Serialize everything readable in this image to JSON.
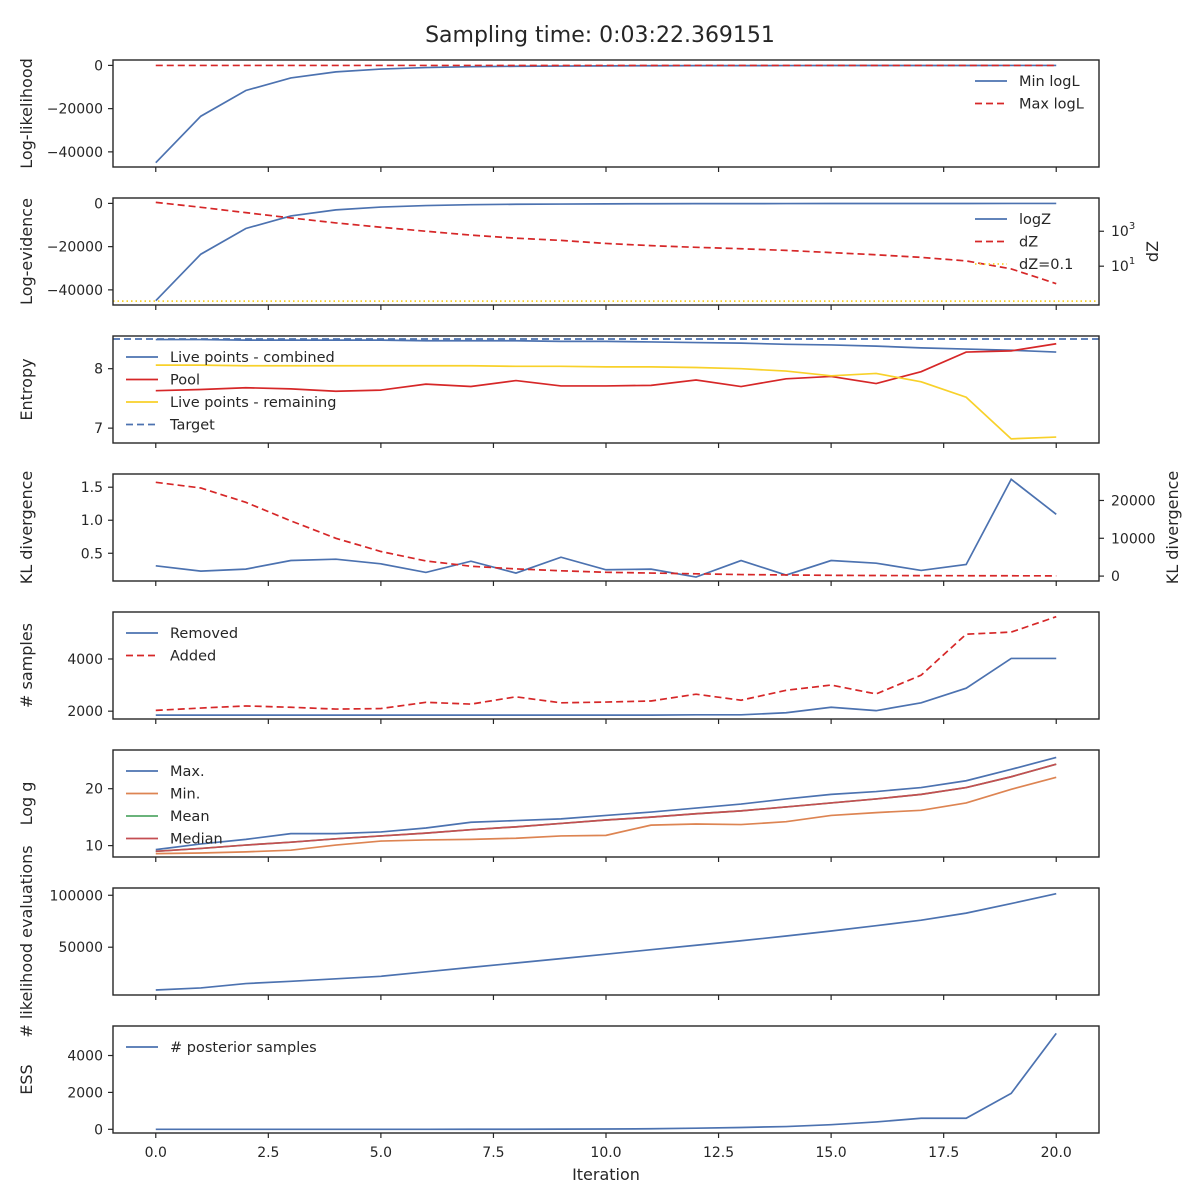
{
  "title": "Sampling time: 0:03:22.369151",
  "colors": {
    "blue": "#4c72b0",
    "red": "#d62728",
    "yellow": "#f8d12a",
    "orange": "#dd8452",
    "green": "#55a868",
    "brown": "#c44e52"
  },
  "chart_data": [
    {
      "type": "line",
      "ylabel": "Log-likelihood",
      "xlim": [
        -0.95,
        20.95
      ],
      "ylim": [
        -47000,
        2500
      ],
      "yticks": [
        0,
        -20000,
        -40000
      ],
      "ytick_labels": [
        "0",
        "−20000",
        "−40000"
      ],
      "legend": "right",
      "series": [
        {
          "name": "Min logL",
          "color": "#4c72b0",
          "style": "solid",
          "x": [
            0,
            1,
            2,
            3,
            4,
            5,
            6,
            7,
            8,
            9,
            10,
            11,
            12,
            13,
            14,
            15,
            16,
            17,
            18,
            19,
            20
          ],
          "y": [
            -45000,
            -23500,
            -11600,
            -5800,
            -3000,
            -1700,
            -1000,
            -600,
            -400,
            -300,
            -200,
            -150,
            -120,
            -100,
            -80,
            -60,
            -50,
            -40,
            -30,
            -25,
            -20
          ]
        },
        {
          "name": "Max logL",
          "color": "#d62728",
          "style": "dashed",
          "x": [
            0,
            20
          ],
          "y": [
            -10,
            -10
          ]
        }
      ]
    },
    {
      "type": "line",
      "ylabel": "Log-evidence",
      "ylabel_right": "dZ",
      "right_axis_scale": "log",
      "xlim": [
        -0.95,
        20.95
      ],
      "ylim": [
        -47000,
        2500
      ],
      "yticks": [
        0,
        -20000,
        -40000
      ],
      "ytick_labels": [
        "0",
        "−20000",
        "−40000"
      ],
      "right_ylim": [
        0.06,
        80000
      ],
      "right_yticks": [
        10,
        1000
      ],
      "right_ytick_labels": [
        [
          "10",
          "1"
        ],
        [
          "10",
          "3"
        ]
      ],
      "legend": "right",
      "series": [
        {
          "name": "logZ",
          "color": "#4c72b0",
          "style": "solid",
          "axis": "left",
          "x": [
            0,
            1,
            2,
            3,
            4,
            5,
            6,
            7,
            8,
            9,
            10,
            11,
            12,
            13,
            14,
            15,
            16,
            17,
            18,
            19,
            20
          ],
          "y": [
            -45000,
            -23500,
            -11600,
            -5800,
            -3000,
            -1700,
            -1000,
            -600,
            -400,
            -300,
            -200,
            -150,
            -120,
            -100,
            -80,
            -60,
            -50,
            -40,
            -30,
            -25,
            -20
          ]
        },
        {
          "name": "dZ",
          "color": "#d62728",
          "style": "dashed",
          "axis": "right",
          "x": [
            0,
            1,
            2,
            3,
            4,
            5,
            6,
            7,
            8,
            9,
            10,
            11,
            12,
            13,
            14,
            15,
            16,
            17,
            18,
            19,
            20
          ],
          "y": [
            45000,
            23500,
            11600,
            5800,
            3000,
            1700,
            1000,
            600,
            400,
            300,
            200,
            150,
            120,
            100,
            80,
            60,
            45,
            32,
            20,
            7,
            1
          ]
        },
        {
          "name": "dZ=0.1",
          "color": "#f8d12a",
          "style": "dotted",
          "axis": "right",
          "hline": 0.1
        }
      ]
    },
    {
      "type": "line",
      "ylabel": "Entropy",
      "xlim": [
        -0.95,
        20.95
      ],
      "ylim": [
        6.75,
        8.55
      ],
      "yticks": [
        7,
        8
      ],
      "ytick_labels": [
        "7",
        "8"
      ],
      "legend": "left",
      "series": [
        {
          "name": "Live points - combined",
          "color": "#4c72b0",
          "style": "solid",
          "x": [
            0,
            1,
            2,
            3,
            4,
            5,
            6,
            7,
            8,
            9,
            10,
            11,
            12,
            13,
            14,
            15,
            16,
            17,
            18,
            19,
            20
          ],
          "y": [
            8.49,
            8.49,
            8.48,
            8.48,
            8.48,
            8.48,
            8.47,
            8.47,
            8.47,
            8.46,
            8.46,
            8.45,
            8.44,
            8.43,
            8.41,
            8.4,
            8.38,
            8.35,
            8.33,
            8.31,
            8.28
          ]
        },
        {
          "name": "Pool",
          "color": "#d62728",
          "style": "solid",
          "x": [
            0,
            1,
            2,
            3,
            4,
            5,
            6,
            7,
            8,
            9,
            10,
            11,
            12,
            13,
            14,
            15,
            16,
            17,
            18,
            19,
            20
          ],
          "y": [
            7.63,
            7.65,
            7.68,
            7.66,
            7.62,
            7.64,
            7.74,
            7.7,
            7.8,
            7.71,
            7.71,
            7.72,
            7.81,
            7.7,
            7.83,
            7.87,
            7.75,
            7.95,
            8.28,
            8.3,
            8.42
          ]
        },
        {
          "name": "Live points - remaining",
          "color": "#f8d12a",
          "style": "solid",
          "x": [
            0,
            1,
            2,
            3,
            4,
            5,
            6,
            7,
            8,
            9,
            10,
            11,
            12,
            13,
            14,
            15,
            16,
            17,
            18,
            19,
            20
          ],
          "y": [
            8.06,
            8.06,
            8.05,
            8.05,
            8.05,
            8.05,
            8.05,
            8.05,
            8.04,
            8.04,
            8.03,
            8.03,
            8.02,
            8.0,
            7.96,
            7.88,
            7.92,
            7.78,
            7.52,
            6.82,
            6.85
          ]
        },
        {
          "name": "Target",
          "color": "#4c72b0",
          "style": "dashed",
          "hline": 8.5
        }
      ]
    },
    {
      "type": "line",
      "ylabel": "KL divergence",
      "ylabel_right": "KL divergence",
      "xlim": [
        -0.95,
        20.95
      ],
      "ylim": [
        0.08,
        1.7
      ],
      "yticks": [
        0.5,
        1.0,
        1.5
      ],
      "ytick_labels": [
        "0.5",
        "1.0",
        "1.5"
      ],
      "right_ylim": [
        -1300,
        27000
      ],
      "right_yticks": [
        0,
        10000,
        20000
      ],
      "right_ytick_labels": [
        "0",
        "10000",
        "20000"
      ],
      "series": [
        {
          "color": "#4c72b0",
          "style": "solid",
          "axis": "left",
          "x": [
            0,
            1,
            2,
            3,
            4,
            5,
            6,
            7,
            8,
            9,
            10,
            11,
            12,
            13,
            14,
            15,
            16,
            17,
            18,
            19,
            20
          ],
          "y": [
            0.31,
            0.23,
            0.26,
            0.39,
            0.41,
            0.34,
            0.21,
            0.38,
            0.2,
            0.44,
            0.25,
            0.26,
            0.14,
            0.39,
            0.17,
            0.39,
            0.35,
            0.24,
            0.33,
            1.62,
            1.09
          ]
        },
        {
          "color": "#d62728",
          "style": "dashed",
          "axis": "right",
          "x": [
            0,
            1,
            2,
            3,
            4,
            5,
            6,
            7,
            8,
            9,
            10,
            11,
            12,
            13,
            14,
            15,
            16,
            17,
            18,
            19,
            20
          ],
          "y": [
            24800,
            23300,
            19500,
            14600,
            10000,
            6500,
            4000,
            2600,
            1900,
            1400,
            1000,
            800,
            600,
            400,
            300,
            200,
            150,
            120,
            100,
            80,
            60
          ]
        }
      ]
    },
    {
      "type": "line",
      "ylabel": "# samples",
      "xlim": [
        -0.95,
        20.95
      ],
      "ylim": [
        1700,
        5800
      ],
      "yticks": [
        2000,
        4000
      ],
      "ytick_labels": [
        "2000",
        "4000"
      ],
      "legend": "left",
      "series": [
        {
          "name": "Removed",
          "color": "#4c72b0",
          "style": "solid",
          "x": [
            0,
            1,
            2,
            3,
            4,
            5,
            6,
            7,
            8,
            9,
            10,
            11,
            12,
            13,
            14,
            15,
            16,
            17,
            18,
            19,
            20
          ],
          "y": [
            1850,
            1850,
            1850,
            1850,
            1850,
            1850,
            1850,
            1850,
            1850,
            1850,
            1850,
            1850,
            1860,
            1860,
            1940,
            2150,
            2020,
            2320,
            2880,
            4020,
            4020
          ]
        },
        {
          "name": "Added",
          "color": "#d62728",
          "style": "dashed",
          "x": [
            0,
            1,
            2,
            3,
            4,
            5,
            6,
            7,
            8,
            9,
            10,
            11,
            12,
            13,
            14,
            15,
            16,
            17,
            18,
            19,
            20
          ],
          "y": [
            2030,
            2120,
            2200,
            2150,
            2080,
            2100,
            2340,
            2270,
            2550,
            2320,
            2350,
            2390,
            2650,
            2420,
            2800,
            3000,
            2660,
            3380,
            4950,
            5030,
            5620
          ]
        }
      ]
    },
    {
      "type": "line",
      "ylabel": "Log g",
      "xlim": [
        -0.95,
        20.95
      ],
      "ylim": [
        8,
        26.8
      ],
      "yticks": [
        10,
        20
      ],
      "ytick_labels": [
        "10",
        "20"
      ],
      "legend": "left",
      "series": [
        {
          "name": "Max.",
          "color": "#4c72b0",
          "style": "solid",
          "x": [
            0,
            1,
            2,
            3,
            4,
            5,
            6,
            7,
            8,
            9,
            10,
            11,
            12,
            13,
            14,
            15,
            16,
            17,
            18,
            19,
            20
          ],
          "y": [
            9.3,
            10.3,
            11.1,
            12.1,
            12.1,
            12.4,
            13.1,
            14.1,
            14.4,
            14.7,
            15.3,
            15.9,
            16.6,
            17.3,
            18.2,
            19.0,
            19.5,
            20.2,
            21.4,
            23.4,
            25.5
          ]
        },
        {
          "name": "Min.",
          "color": "#dd8452",
          "style": "solid",
          "x": [
            0,
            1,
            2,
            3,
            4,
            5,
            6,
            7,
            8,
            9,
            10,
            11,
            12,
            13,
            14,
            15,
            16,
            17,
            18,
            19,
            20
          ],
          "y": [
            8.6,
            8.7,
            8.9,
            9.2,
            10.1,
            10.8,
            11.0,
            11.1,
            11.3,
            11.7,
            11.8,
            13.6,
            13.8,
            13.7,
            14.2,
            15.3,
            15.8,
            16.2,
            17.5,
            19.9,
            22.0
          ]
        },
        {
          "name": "Mean",
          "color": "#55a868",
          "style": "solid",
          "x": [
            0,
            1,
            2,
            3,
            4,
            5,
            6,
            7,
            8,
            9,
            10,
            11,
            12,
            13,
            14,
            15,
            16,
            17,
            18,
            19,
            20
          ],
          "y": [
            9.0,
            9.5,
            10.1,
            10.6,
            11.2,
            11.7,
            12.2,
            12.8,
            13.3,
            13.9,
            14.5,
            15.0,
            15.6,
            16.1,
            16.8,
            17.5,
            18.2,
            19.0,
            20.2,
            22.1,
            24.3
          ]
        },
        {
          "name": "Median",
          "color": "#c44e52",
          "style": "solid",
          "x": [
            0,
            1,
            2,
            3,
            4,
            5,
            6,
            7,
            8,
            9,
            10,
            11,
            12,
            13,
            14,
            15,
            16,
            17,
            18,
            19,
            20
          ],
          "y": [
            9.0,
            9.5,
            10.1,
            10.6,
            11.2,
            11.7,
            12.2,
            12.8,
            13.3,
            13.9,
            14.5,
            15.0,
            15.6,
            16.1,
            16.8,
            17.5,
            18.2,
            19.0,
            20.2,
            22.1,
            24.3
          ]
        }
      ]
    },
    {
      "type": "line",
      "ylabel": "# likelihood evaluations",
      "xlim": [
        -0.95,
        20.95
      ],
      "ylim": [
        4000,
        107000
      ],
      "yticks": [
        50000,
        100000
      ],
      "ytick_labels": [
        "50000",
        "100000"
      ],
      "series": [
        {
          "color": "#4c72b0",
          "style": "solid",
          "x": [
            0,
            1,
            2,
            3,
            4,
            5,
            6,
            7,
            8,
            9,
            10,
            11,
            12,
            13,
            14,
            15,
            16,
            17,
            18,
            19,
            20
          ],
          "y": [
            8800,
            10800,
            15000,
            17200,
            19600,
            22000,
            26300,
            30600,
            34800,
            39000,
            43300,
            47600,
            51900,
            56200,
            60800,
            65600,
            70700,
            76000,
            82800,
            92000,
            101500
          ]
        }
      ]
    },
    {
      "type": "line",
      "ylabel": "ESS",
      "xlabel": "Iteration",
      "xlim": [
        -0.95,
        20.95
      ],
      "ylim": [
        -200,
        5600
      ],
      "yticks": [
        0,
        2000,
        4000
      ],
      "ytick_labels": [
        "0",
        "2000",
        "4000"
      ],
      "xticks": [
        0,
        2.5,
        5,
        7.5,
        10,
        12.5,
        15,
        17.5,
        20
      ],
      "xtick_labels": [
        "0.0",
        "2.5",
        "5.0",
        "7.5",
        "10.0",
        "12.5",
        "15.0",
        "17.5",
        "20.0"
      ],
      "legend": "left",
      "series": [
        {
          "name": "# posterior samples",
          "color": "#4c72b0",
          "style": "solid",
          "x": [
            0,
            1,
            2,
            3,
            4,
            5,
            6,
            7,
            8,
            9,
            10,
            11,
            12,
            13,
            14,
            15,
            16,
            17,
            18,
            19,
            20
          ],
          "y": [
            0,
            0,
            0,
            0,
            0,
            0,
            0,
            2,
            5,
            10,
            15,
            30,
            60,
            100,
            150,
            250,
            400,
            600,
            600,
            1950,
            5200
          ]
        }
      ]
    }
  ]
}
